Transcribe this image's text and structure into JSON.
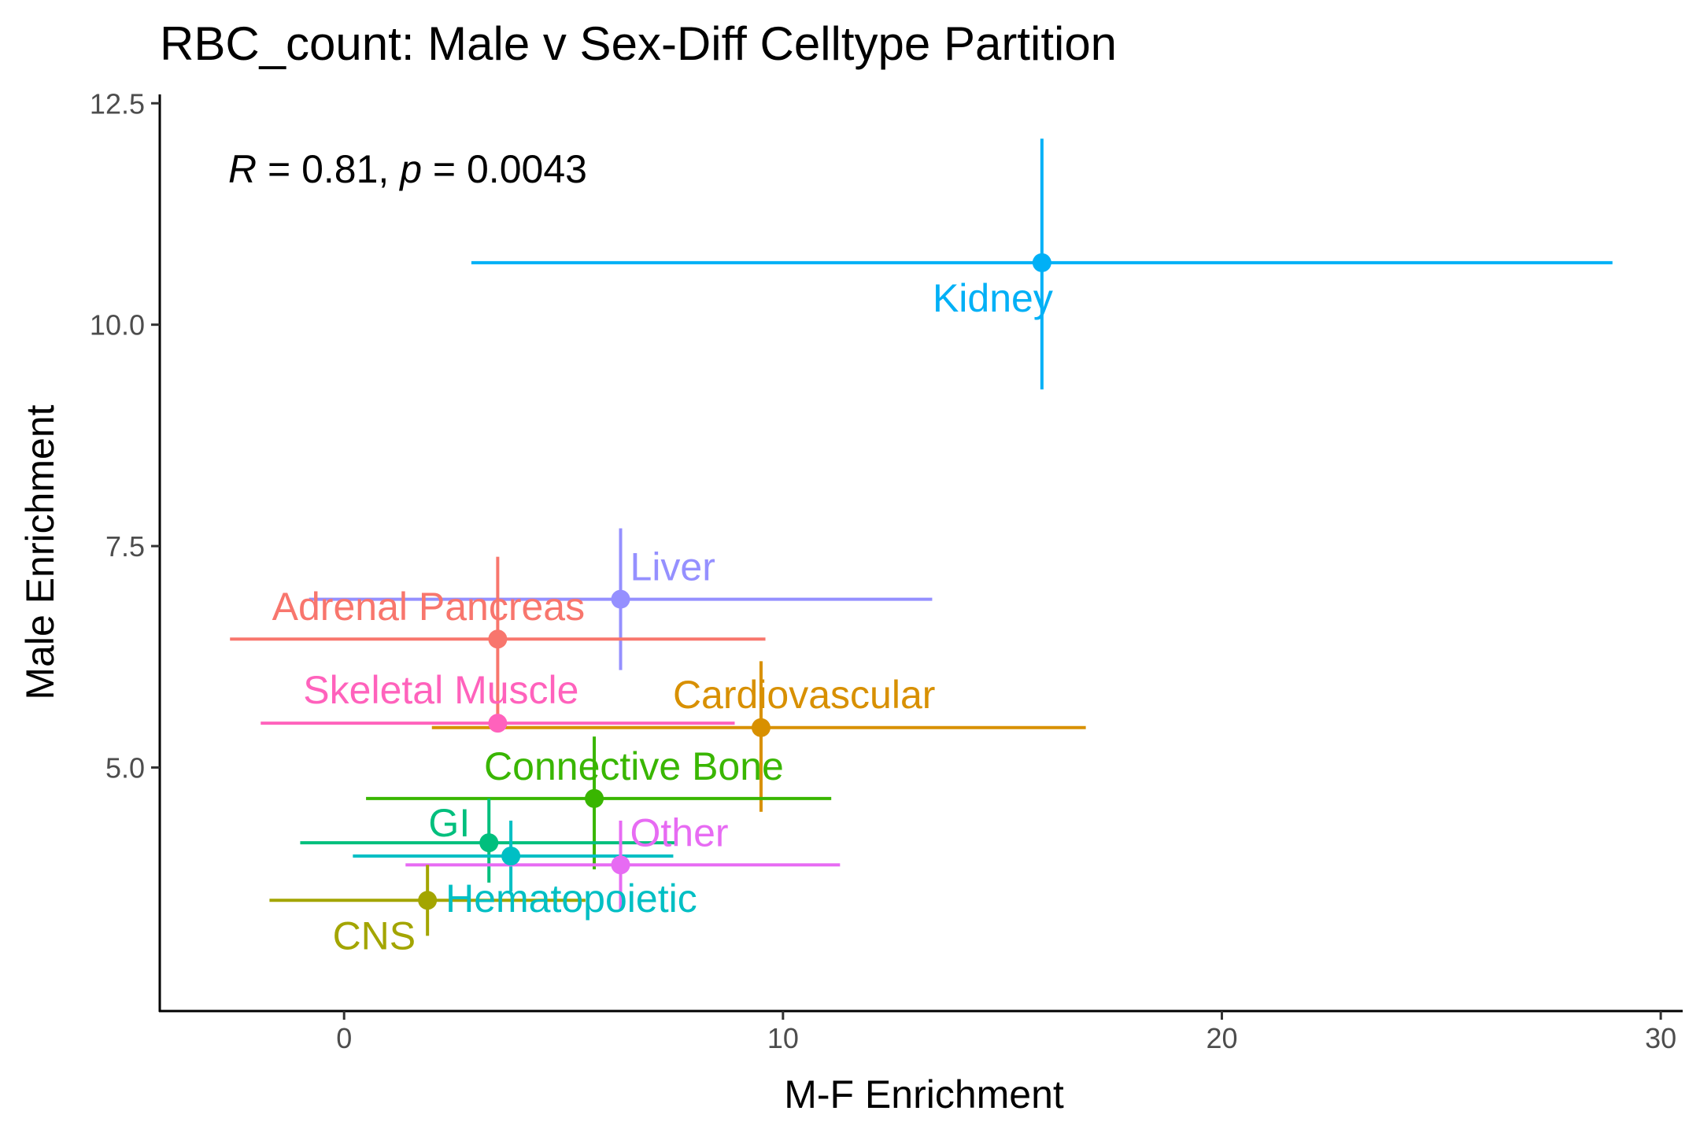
{
  "chart_data": {
    "type": "scatter",
    "title": "RBC_count: Male v Sex-Diff Celltype Partition",
    "xlabel": "M-F Enrichment",
    "ylabel": "Male Enrichment",
    "xlim": [
      -4.2,
      30.5
    ],
    "ylim": [
      2.25,
      12.6
    ],
    "xticks": [
      0,
      10,
      20,
      30
    ],
    "xtick_labels": [
      "0",
      "10",
      "20",
      "30"
    ],
    "yticks": [
      5.0,
      7.5,
      10.0,
      12.5
    ],
    "ytick_labels": [
      "5.0",
      "7.5",
      "10.0",
      "12.5"
    ],
    "grid": false,
    "legend": "none",
    "annotation": {
      "r_symbol": "R",
      "r_text": " = 0.81, ",
      "p_symbol": "p",
      "p_text": " = 0.0043"
    },
    "points": [
      {
        "label": "Kidney",
        "x": 15.9,
        "y": 10.7,
        "xmin": 2.9,
        "xmax": 28.9,
        "ymin": 9.27,
        "ymax": 12.1,
        "color": "#00B0F6",
        "label_pos": "below-left"
      },
      {
        "label": "Liver",
        "x": 6.3,
        "y": 6.9,
        "xmin": -0.8,
        "xmax": 13.4,
        "ymin": 6.1,
        "ymax": 7.7,
        "color": "#9590FF",
        "label_pos": "above-right"
      },
      {
        "label": "Adrenal Pancreas",
        "x": 3.5,
        "y": 6.45,
        "xmin": -2.6,
        "xmax": 9.6,
        "ymin": 5.5,
        "ymax": 7.38,
        "color": "#F8766D",
        "label_pos": "above-center"
      },
      {
        "label": "Skeletal Muscle",
        "x": 3.5,
        "y": 5.5,
        "xmin": -1.9,
        "xmax": 8.9,
        "ymin": 5.45,
        "ymax": 5.55,
        "color": "#FF62BC",
        "label_pos": "above-center"
      },
      {
        "label": "Cardiovascular",
        "x": 9.5,
        "y": 5.45,
        "xmin": 2.0,
        "xmax": 16.9,
        "ymin": 4.5,
        "ymax": 6.2,
        "color": "#D89000",
        "label_pos": "above-right"
      },
      {
        "label": "Connective Bone",
        "x": 5.7,
        "y": 4.65,
        "xmin": 0.5,
        "xmax": 11.1,
        "ymin": 3.85,
        "ymax": 5.35,
        "color": "#39B600",
        "label_pos": "above-right"
      },
      {
        "label": "GI",
        "x": 3.3,
        "y": 4.15,
        "xmin": -1.0,
        "xmax": 7.6,
        "ymin": 3.7,
        "ymax": 4.65,
        "color": "#00BF7D",
        "label_pos": "above-left"
      },
      {
        "label": "Hematopoietic",
        "x": 3.8,
        "y": 4.0,
        "xmin": 0.2,
        "xmax": 7.5,
        "ymin": 3.6,
        "ymax": 4.4,
        "color": "#00BFC4",
        "label_pos": "below-right"
      },
      {
        "label": "Other",
        "x": 6.3,
        "y": 3.9,
        "xmin": 1.4,
        "xmax": 11.3,
        "ymin": 3.4,
        "ymax": 4.4,
        "color": "#E76BF3",
        "label_pos": "above-right"
      },
      {
        "label": "CNS",
        "x": 1.9,
        "y": 3.5,
        "xmin": -1.7,
        "xmax": 5.5,
        "ymin": 3.1,
        "ymax": 3.9,
        "color": "#A3A500",
        "label_pos": "below-left"
      }
    ]
  }
}
